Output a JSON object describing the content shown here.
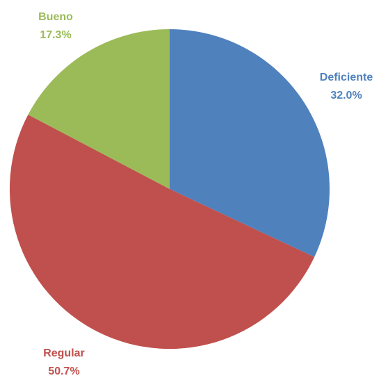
{
  "chart_data": {
    "type": "pie",
    "title": "",
    "start_angle_deg": 0,
    "direction": "clockwise",
    "legend": "none",
    "slices": [
      {
        "label": "Deficiente",
        "value": 32.0,
        "value_label": "32.0%",
        "color": "#4f81bd"
      },
      {
        "label": "Regular",
        "value": 50.7,
        "value_label": "50.7%",
        "color": "#c0504d"
      },
      {
        "label": "Bueno",
        "value": 17.3,
        "value_label": "17.3%",
        "color": "#9bbb59"
      }
    ]
  }
}
